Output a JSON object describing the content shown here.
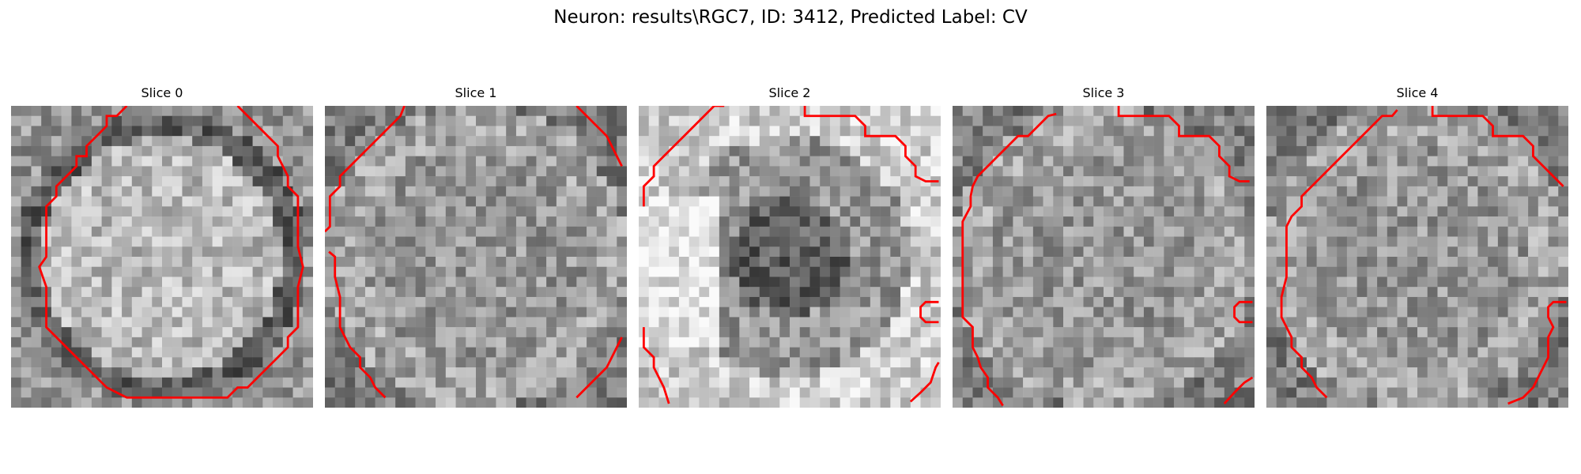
{
  "figure": {
    "title": "Neuron: results\\RGC7, ID: 3412, Predicted Label: CV"
  },
  "overlay": {
    "contour_color": "#ff0000"
  },
  "panels": [
    {
      "title": "Slice 0",
      "seed": 11,
      "pattern": "ring"
    },
    {
      "title": "Slice 1",
      "seed": 23,
      "pattern": "mixed"
    },
    {
      "title": "Slice 2",
      "seed": 37,
      "pattern": "dark-center"
    },
    {
      "title": "Slice 3",
      "seed": 41,
      "pattern": "mixed"
    },
    {
      "title": "Slice 4",
      "seed": 53,
      "pattern": "mixed"
    }
  ]
}
